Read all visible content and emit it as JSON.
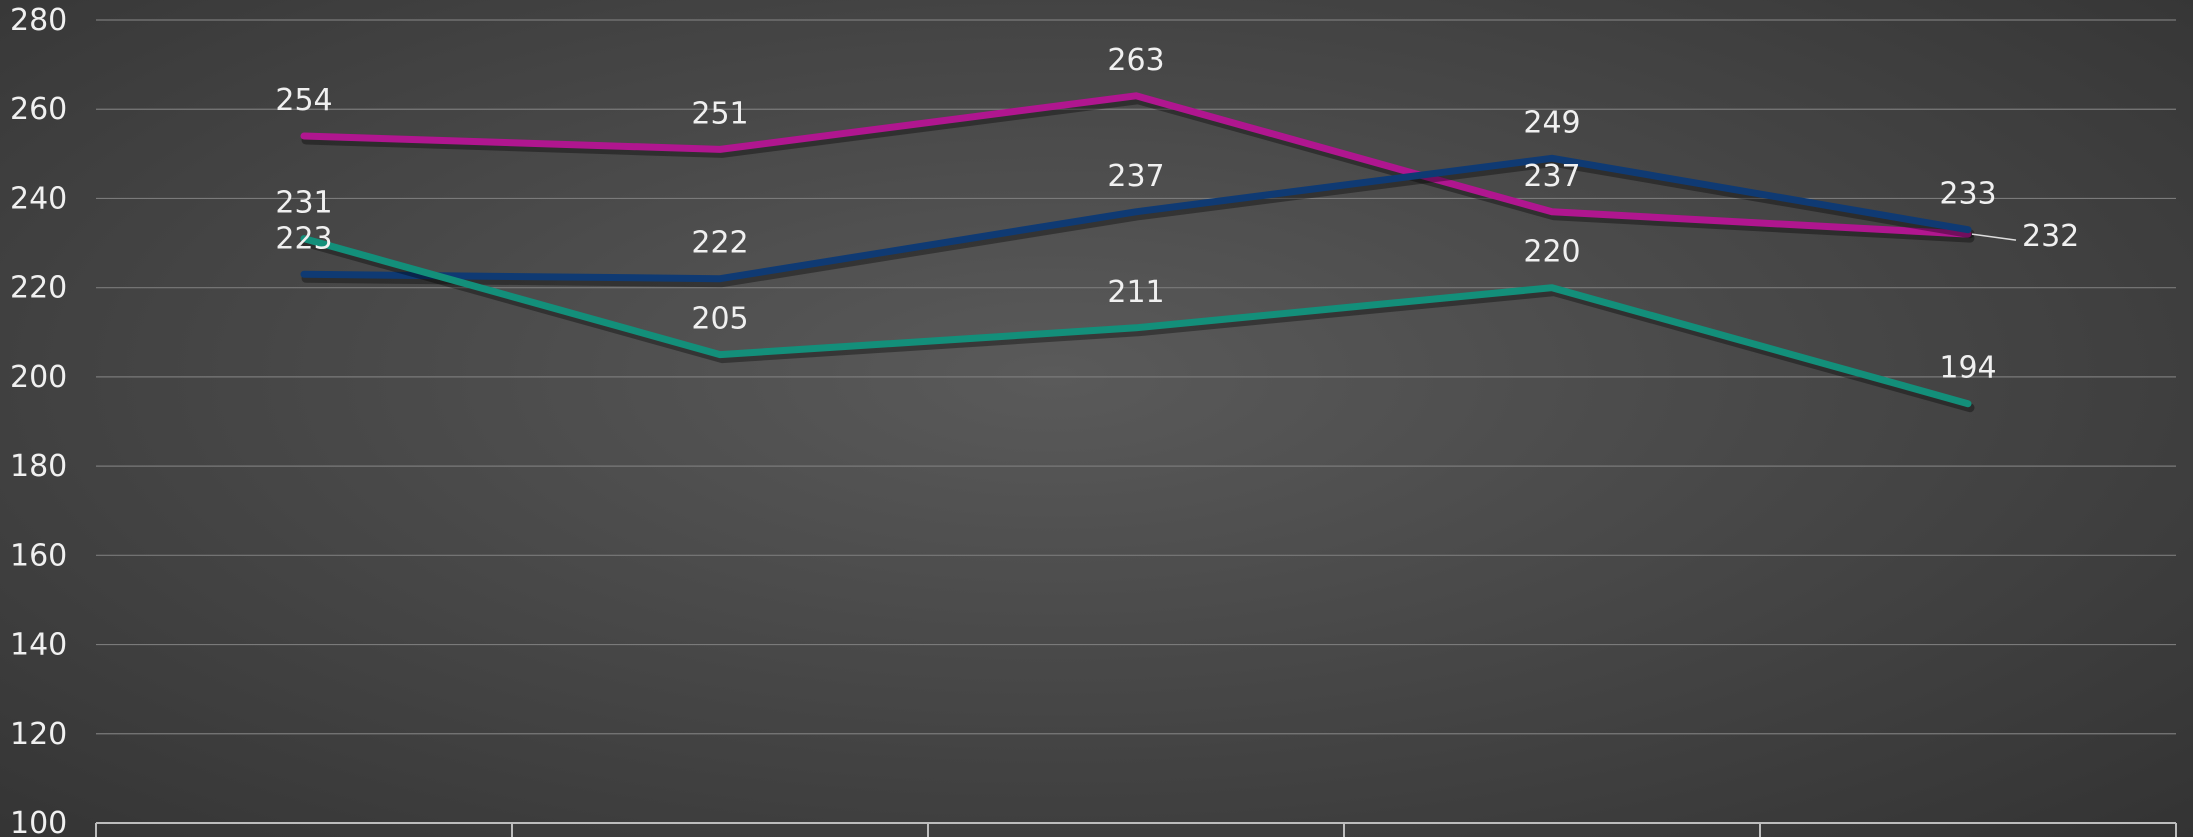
{
  "chart_data": {
    "type": "line",
    "title": "",
    "xlabel": "",
    "ylabel": "",
    "ylim": [
      100,
      280
    ],
    "ytick_step": 20,
    "categories": [
      "",
      "",
      "",
      "",
      ""
    ],
    "grid": true,
    "series": [
      {
        "values": [
          254,
          251,
          263,
          237,
          232
        ],
        "color": "#b0168f"
      },
      {
        "values": [
          223,
          222,
          237,
          249,
          233
        ],
        "color": "#0f3a73"
      },
      {
        "values": [
          231,
          205,
          211,
          220,
          194
        ],
        "color": "#138f7a"
      }
    ]
  }
}
